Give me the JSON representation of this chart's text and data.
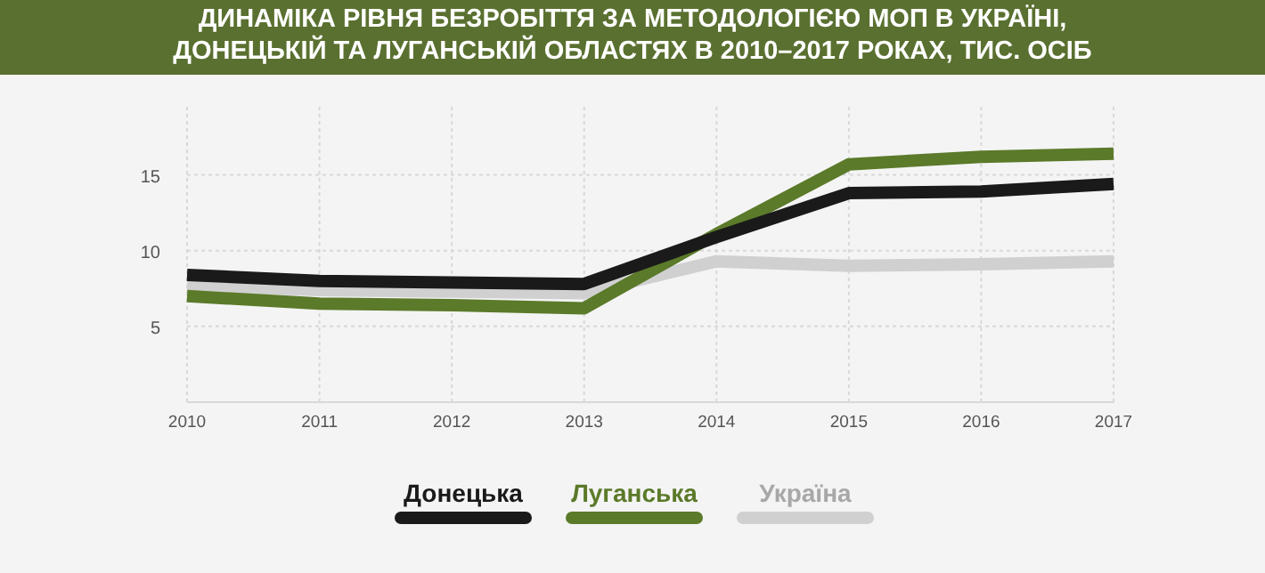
{
  "chart_data": {
    "type": "line",
    "title": "ДИНАМІКА РІВНЯ БЕЗРОБІТТЯ ЗА МЕТОДОЛОГІЄЮ МОП В УКРАЇНІ,\nДОНЕЦЬКІЙ ТА ЛУГАНСЬКІЙ ОБЛАСТЯХ В 2010–2017 РОКАХ, ТИС. ОСІБ",
    "categories": [
      "2010",
      "2011",
      "2012",
      "2013",
      "2014",
      "2015",
      "2016",
      "2017"
    ],
    "series": [
      {
        "name": "Україна",
        "color": "#d0d0d0",
        "values": [
          7.7,
          7.4,
          7.3,
          7.2,
          9.3,
          9.0,
          9.1,
          9.3
        ]
      },
      {
        "name": "Луганська",
        "color": "#5b7a2a",
        "values": [
          7.0,
          6.5,
          6.4,
          6.2,
          11.1,
          15.7,
          16.2,
          16.4
        ]
      },
      {
        "name": "Донецька",
        "color": "#1a1a1a",
        "values": [
          8.4,
          8.0,
          7.9,
          7.8,
          10.9,
          13.8,
          13.9,
          14.4
        ]
      }
    ],
    "ylim": [
      0,
      19.5
    ],
    "yticks": [
      5,
      10,
      15
    ],
    "grid": true,
    "legend": "bottom",
    "line_style": "solid",
    "marker": "none"
  }
}
